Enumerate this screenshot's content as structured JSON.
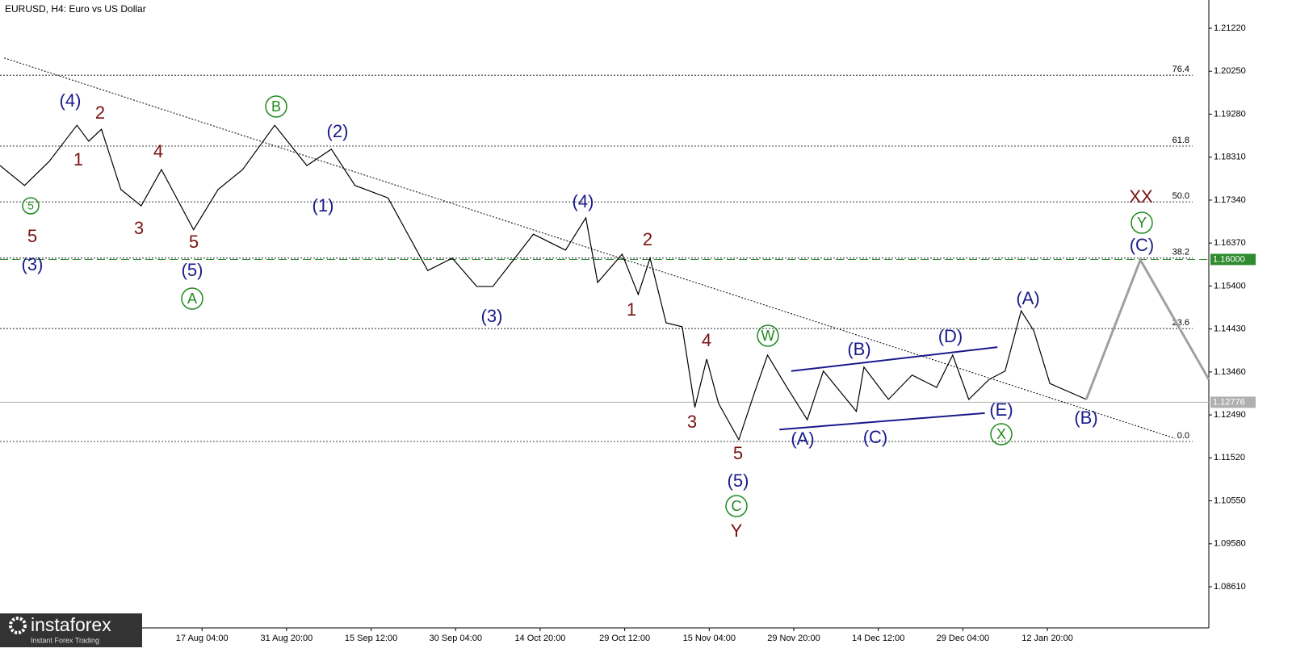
{
  "chart_data": {
    "type": "line",
    "title": "EURUSD, H4:  Euro vs US Dollar",
    "x": [
      -2.39,
      -2.1,
      -1.81,
      -1.48,
      -1.34,
      -1.19,
      -0.96,
      -0.72,
      -0.48,
      -0.1,
      0.19,
      0.48,
      0.86,
      1.24,
      1.53,
      1.81,
      2.2,
      2.67,
      2.96,
      3.25,
      3.44,
      3.92,
      4.3,
      4.54,
      4.68,
      4.97,
      5.16,
      5.3,
      5.49,
      5.68,
      5.83,
      5.97,
      6.11,
      6.35,
      6.54,
      6.69,
      6.92,
      7.16,
      7.35,
      7.74,
      7.83,
      8.12,
      8.4,
      8.69,
      8.88,
      9.07,
      9.31,
      9.5,
      9.69,
      9.84,
      10.03,
      10.46
    ],
    "values": [
      1.1812,
      1.1767,
      1.1821,
      1.1903,
      1.1867,
      1.1894,
      1.1758,
      1.1721,
      1.1803,
      1.1667,
      1.1758,
      1.1803,
      1.1903,
      1.1812,
      1.1849,
      1.1767,
      1.1739,
      1.1575,
      1.1603,
      1.1539,
      1.1539,
      1.1657,
      1.1621,
      1.1694,
      1.1548,
      1.1612,
      1.1521,
      1.1603,
      1.1457,
      1.1448,
      1.1266,
      1.1375,
      1.1275,
      1.1193,
      1.1302,
      1.1384,
      1.1311,
      1.1238,
      1.1348,
      1.1257,
      1.1357,
      1.1284,
      1.1339,
      1.1311,
      1.1384,
      1.1284,
      1.1329,
      1.1348,
      1.1484,
      1.1439,
      1.132,
      1.1284
    ],
    "color": "#000000",
    "projection": {
      "x": [
        10.46,
        11.1,
        11.91
      ],
      "values": [
        1.1284,
        1.1599,
        1.1329
      ],
      "color": "#a0a0a0"
    },
    "xlim": [
      -2.39,
      11.91
    ],
    "ylim": [
      1.07681,
      1.21858
    ],
    "xticks": [
      {
        "value": 0,
        "label": "17 Aug 04:00"
      },
      {
        "value": 1,
        "label": "31 Aug 20:00"
      },
      {
        "value": 2,
        "label": "15 Sep 12:00"
      },
      {
        "value": 3,
        "label": "30 Sep 04:00"
      },
      {
        "value": 4,
        "label": "14 Oct 20:00"
      },
      {
        "value": 5,
        "label": "29 Oct 12:00"
      },
      {
        "value": 6,
        "label": "15 Nov 04:00"
      },
      {
        "value": 7,
        "label": "29 Nov 20:00"
      },
      {
        "value": 8,
        "label": "14 Dec 12:00"
      },
      {
        "value": 9,
        "label": "29 Dec 04:00"
      },
      {
        "value": 10,
        "label": "12 Jan 20:00"
      }
    ],
    "yticks": [
      {
        "value": 1.2122,
        "label": "1.21220"
      },
      {
        "value": 1.2025,
        "label": "1.20250"
      },
      {
        "value": 1.1928,
        "label": "1.19280"
      },
      {
        "value": 1.1831,
        "label": "1.18310"
      },
      {
        "value": 1.1734,
        "label": "1.17340"
      },
      {
        "value": 1.1637,
        "label": "1.16370"
      },
      {
        "value": 1.154,
        "label": "1.15400"
      },
      {
        "value": 1.1443,
        "label": "1.14430"
      },
      {
        "value": 1.1346,
        "label": "1.13460"
      },
      {
        "value": 1.1249,
        "label": "1.12490"
      },
      {
        "value": 1.1152,
        "label": "1.11520"
      },
      {
        "value": 1.1055,
        "label": "1.10550"
      },
      {
        "value": 1.0958,
        "label": "1.09580"
      },
      {
        "value": 1.0861,
        "label": "1.08610"
      }
    ],
    "fib_levels": [
      {
        "level": "76.4",
        "price": 1.2016
      },
      {
        "level": "61.8",
        "price": 1.1856
      },
      {
        "level": "50.0",
        "price": 1.173
      },
      {
        "level": "38.2",
        "price": 1.1603
      },
      {
        "level": "23.6",
        "price": 1.1444
      },
      {
        "level": "0.0",
        "price": 1.1189
      }
    ],
    "hlines": [
      {
        "value": 1.16,
        "label": "1.16000",
        "color": "#2e8b2e",
        "dashed": true
      },
      {
        "value": 1.12776,
        "label": "1.12776",
        "color": "#b0b0b0",
        "dashed": false
      }
    ],
    "trendlines": [
      {
        "x": [
          -2.34,
          11.51
        ],
        "y": [
          1.2055,
          1.1196
        ],
        "color": "#000000",
        "dotted": true
      },
      {
        "x": [
          6.97,
          9.41
        ],
        "y": [
          1.1348,
          1.1402
        ],
        "color": "#1a1a8c",
        "dotted": false
      },
      {
        "x": [
          6.83,
          9.26
        ],
        "y": [
          1.1216,
          1.1253
        ],
        "color": "#1a1a8c",
        "dotted": false
      }
    ],
    "annotations": [
      {
        "text": "5",
        "color": "#1f8a1f",
        "circled": true
      },
      {
        "text": "5",
        "color": "#7a1212",
        "circled": false
      },
      {
        "text": "(3)",
        "color": "#1a1a8c",
        "circled": false
      },
      {
        "text": "(4)",
        "color": "#1a1a8c",
        "circled": false
      },
      {
        "text": "2",
        "color": "#7a1212",
        "circled": false
      },
      {
        "text": "1",
        "color": "#7a1212",
        "circled": false
      },
      {
        "text": "4",
        "color": "#7a1212",
        "circled": false
      },
      {
        "text": "3",
        "color": "#7a1212",
        "circled": false
      },
      {
        "text": "5",
        "color": "#7a1212",
        "circled": false
      },
      {
        "text": "(5)",
        "color": "#1a1a8c",
        "circled": false
      },
      {
        "text": "A",
        "color": "#1f8a1f",
        "circled": true
      },
      {
        "text": "B",
        "color": "#1f8a1f",
        "circled": true
      },
      {
        "text": "(2)",
        "color": "#1a1a8c",
        "circled": false
      },
      {
        "text": "(1)",
        "color": "#1a1a8c",
        "circled": false
      },
      {
        "text": "(3)",
        "color": "#1a1a8c",
        "circled": false
      },
      {
        "text": "(4)",
        "color": "#1a1a8c",
        "circled": false
      },
      {
        "text": "2",
        "color": "#7a1212",
        "circled": false
      },
      {
        "text": "1",
        "color": "#7a1212",
        "circled": false
      },
      {
        "text": "4",
        "color": "#7a1212",
        "circled": false
      },
      {
        "text": "3",
        "color": "#7a1212",
        "circled": false
      },
      {
        "text": "5",
        "color": "#7a1212",
        "circled": false
      },
      {
        "text": "(5)",
        "color": "#1a1a8c",
        "circled": false
      },
      {
        "text": "C",
        "color": "#1f8a1f",
        "circled": true
      },
      {
        "text": "Y",
        "color": "#7a1212",
        "circled": false
      },
      {
        "text": "W",
        "color": "#1f8a1f",
        "circled": true
      },
      {
        "text": "(A)",
        "color": "#1a1a8c",
        "circled": false
      },
      {
        "text": "(B)",
        "color": "#1a1a8c",
        "circled": false
      },
      {
        "text": "(C)",
        "color": "#1a1a8c",
        "circled": false
      },
      {
        "text": "(D)",
        "color": "#1a1a8c",
        "circled": false
      },
      {
        "text": "(E)",
        "color": "#1a1a8c",
        "circled": false
      },
      {
        "text": "X",
        "color": "#1f8a1f",
        "circled": true
      },
      {
        "text": "(A)",
        "color": "#1a1a8c",
        "circled": false
      },
      {
        "text": "(B)",
        "color": "#1a1a8c",
        "circled": false
      },
      {
        "text": "(C)",
        "color": "#1a1a8c",
        "circled": false
      },
      {
        "text": "Y",
        "color": "#1f8a1f",
        "circled": true
      },
      {
        "text": "XX",
        "color": "#7a1212",
        "circled": false
      }
    ],
    "watermark": {
      "brand": "instaforex",
      "tagline": "Instant Forex Trading"
    }
  }
}
